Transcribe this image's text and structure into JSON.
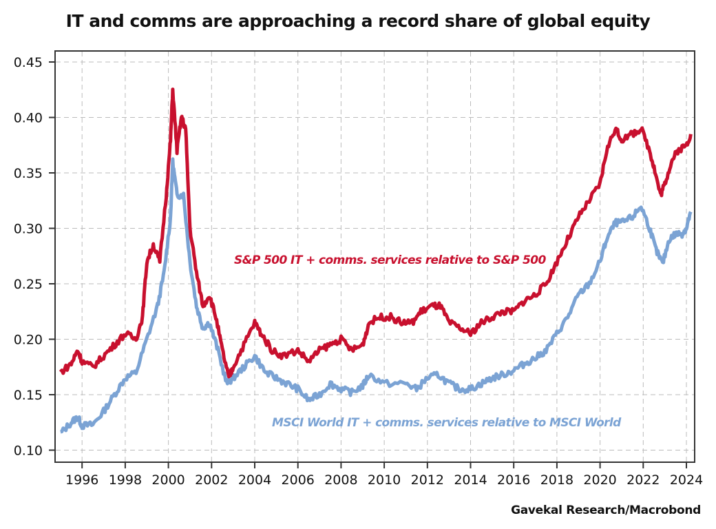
{
  "chart_data": {
    "type": "line",
    "title": "IT and comms are approaching a record share of global equity",
    "source": "Gavekal Research/Macrobond",
    "xlabel": "",
    "ylabel": "",
    "xlim": [
      1994.75,
      2024.4
    ],
    "ylim": [
      0.089,
      0.46
    ],
    "grid": true,
    "x_ticks": [
      "1996",
      "1998",
      "2000",
      "2002",
      "2004",
      "2006",
      "2008",
      "2010",
      "2012",
      "2014",
      "2016",
      "2018",
      "2020",
      "2022",
      "2024"
    ],
    "y_ticks": [
      "0.10",
      "0.15",
      "0.20",
      "0.25",
      "0.30",
      "0.35",
      "0.40",
      "0.45"
    ],
    "series": [
      {
        "name": "S&P 500 IT + comms. services relative to S&P 500",
        "color": "#c8102e",
        "x": [
          1995.0,
          1995.5,
          1995.8,
          1996.0,
          1996.5,
          1997,
          1997.5,
          1998,
          1998.5,
          1998.8,
          1999,
          1999.3,
          1999.6,
          1999.9,
          2000.1,
          2000.2,
          2000.4,
          2000.6,
          2000.8,
          2001,
          2001.3,
          2001.6,
          2001.9,
          2002.2,
          2002.5,
          2002.8,
          2003,
          2003.5,
          2004,
          2004.3,
          2004.8,
          2005.3,
          2006,
          2006.5,
          2007,
          2007.5,
          2008,
          2008.5,
          2009,
          2009.3,
          2009.8,
          2010.3,
          2010.8,
          2011.3,
          2011.7,
          2012.2,
          2012.6,
          2013,
          2013.5,
          2014,
          2014.5,
          2015,
          2015.5,
          2016,
          2016.5,
          2017,
          2017.5,
          2018,
          2018.5,
          2019,
          2019.5,
          2020,
          2020.3,
          2020.7,
          2021,
          2021.5,
          2021.9,
          2022.3,
          2022.5,
          2022.8,
          2023,
          2023.3,
          2023.6,
          2024,
          2024.2
        ],
        "y": [
          0.17,
          0.178,
          0.19,
          0.18,
          0.175,
          0.185,
          0.195,
          0.205,
          0.2,
          0.22,
          0.27,
          0.285,
          0.27,
          0.33,
          0.38,
          0.425,
          0.37,
          0.4,
          0.39,
          0.3,
          0.26,
          0.23,
          0.24,
          0.22,
          0.19,
          0.165,
          0.175,
          0.195,
          0.215,
          0.205,
          0.19,
          0.185,
          0.19,
          0.18,
          0.19,
          0.195,
          0.2,
          0.19,
          0.195,
          0.215,
          0.22,
          0.22,
          0.215,
          0.215,
          0.225,
          0.23,
          0.23,
          0.215,
          0.21,
          0.205,
          0.215,
          0.22,
          0.225,
          0.225,
          0.235,
          0.24,
          0.25,
          0.27,
          0.29,
          0.31,
          0.325,
          0.34,
          0.37,
          0.39,
          0.38,
          0.385,
          0.39,
          0.37,
          0.355,
          0.33,
          0.34,
          0.36,
          0.37,
          0.375,
          0.385
        ]
      },
      {
        "name": "MSCI World IT + comms. services relative to MSCI World",
        "color": "#7ba3d4",
        "x": [
          1995.0,
          1995.5,
          1995.8,
          1996.0,
          1996.5,
          1997,
          1997.5,
          1998,
          1998.5,
          1999,
          1999.5,
          1999.8,
          2000.1,
          2000.2,
          2000.4,
          2000.7,
          2001,
          2001.3,
          2001.6,
          2001.9,
          2002.3,
          2002.7,
          2003,
          2003.5,
          2004,
          2004.5,
          2005,
          2005.5,
          2006,
          2006.5,
          2007,
          2007.5,
          2008,
          2008.5,
          2009,
          2009.3,
          2010,
          2011,
          2011.5,
          2012,
          2012.5,
          2013,
          2013.5,
          2014,
          2014.5,
          2015,
          2015.5,
          2016,
          2016.5,
          2017,
          2017.5,
          2018,
          2018.5,
          2019,
          2019.5,
          2020,
          2020.3,
          2020.7,
          2021,
          2021.5,
          2021.9,
          2022.3,
          2022.6,
          2022.9,
          2023.2,
          2023.5,
          2023.8,
          2024,
          2024.2
        ],
        "y": [
          0.115,
          0.125,
          0.13,
          0.122,
          0.123,
          0.135,
          0.15,
          0.165,
          0.17,
          0.2,
          0.23,
          0.26,
          0.31,
          0.36,
          0.33,
          0.33,
          0.27,
          0.23,
          0.21,
          0.215,
          0.19,
          0.16,
          0.165,
          0.175,
          0.185,
          0.17,
          0.165,
          0.16,
          0.155,
          0.145,
          0.15,
          0.16,
          0.155,
          0.152,
          0.158,
          0.168,
          0.16,
          0.16,
          0.155,
          0.165,
          0.168,
          0.16,
          0.155,
          0.155,
          0.16,
          0.165,
          0.168,
          0.172,
          0.178,
          0.183,
          0.19,
          0.205,
          0.22,
          0.24,
          0.25,
          0.27,
          0.29,
          0.305,
          0.305,
          0.31,
          0.32,
          0.3,
          0.28,
          0.268,
          0.29,
          0.295,
          0.295,
          0.3,
          0.315
        ]
      }
    ],
    "annotations": [
      "S&P 500 IT + comms. services relative to S&P 500",
      "MSCI World IT + comms. services relative to MSCI World"
    ]
  }
}
